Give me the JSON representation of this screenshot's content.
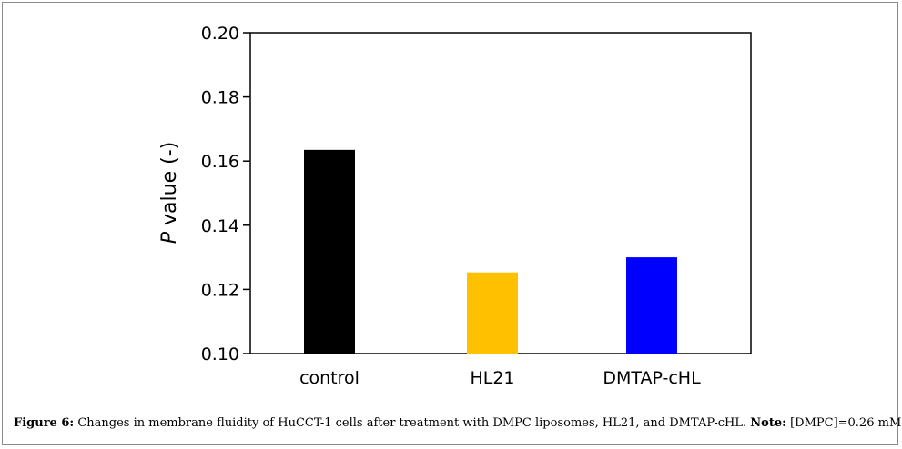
{
  "chart_data": {
    "type": "bar",
    "categories": [
      "control",
      "HL21",
      "DMTAP-cHL"
    ],
    "values": [
      0.1635,
      0.1253,
      0.13
    ],
    "colors": [
      "#000000",
      "#FFC000",
      "#0000FF"
    ],
    "ylim": [
      0.1,
      0.2
    ],
    "yticks": [
      "0.20",
      "0.18",
      "0.16",
      "0.14",
      "0.12",
      "0.10"
    ],
    "ylabel_italic": "P",
    "ylabel_rest": " value (-)",
    "xlabel": ""
  },
  "caption": {
    "figure_label": "Figure 6:",
    "text": " Changes in membrane fluidity of HuCCT-1 cells after treatment with DMPC liposomes, HL21, and DMTAP-cHL. ",
    "note_label": "Note:",
    "note_text": " [DMPC]=0.26 mM."
  }
}
